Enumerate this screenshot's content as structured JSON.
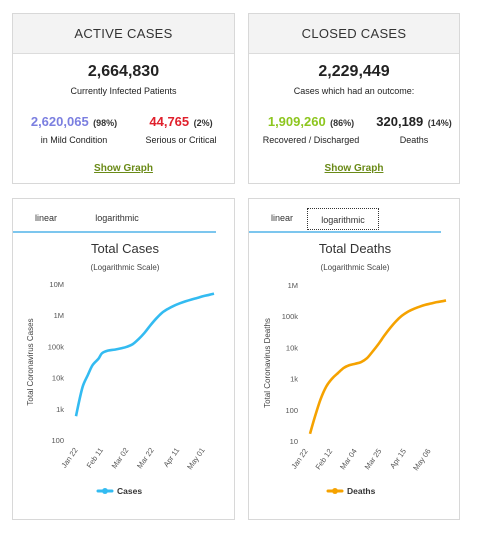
{
  "active": {
    "title": "ACTIVE CASES",
    "total": "2,664,830",
    "total_label": "Currently Infected Patients",
    "mild_value": "2,620,065",
    "mild_pct": "(98%)",
    "mild_label": "in Mild Condition",
    "serious_value": "44,765",
    "serious_pct": "(2%)",
    "serious_label": "Serious or Critical",
    "link": "Show Graph"
  },
  "closed": {
    "title": "CLOSED CASES",
    "total": "2,229,449",
    "total_label": "Cases which had an outcome:",
    "recovered_value": "1,909,260",
    "recovered_pct": "(86%)",
    "recovered_label": "Recovered / Discharged",
    "deaths_value": "320,189",
    "deaths_pct": "(14%)",
    "deaths_label": "Deaths",
    "link": "Show Graph"
  },
  "colors": {
    "mild": "#7b7fe0",
    "serious": "#e0202c",
    "recovered": "#8dc61f",
    "cases_line": "#33bbf1",
    "deaths_line": "#f5a200"
  },
  "chart_data": [
    {
      "type": "line",
      "title": "Total Cases",
      "subtitle": "(Logarithmic Scale)",
      "ylabel": "Total Coronavirus Cases",
      "y_scale": "log",
      "ylim": [
        100,
        10000000
      ],
      "y_ticks": [
        "100",
        "1k",
        "10k",
        "100k",
        "1M",
        "10M"
      ],
      "x_ticks": [
        "Jan 22",
        "Feb 11",
        "Mar 02",
        "Mar 22",
        "Apr 11",
        "May 01"
      ],
      "tabs": [
        "linear",
        "logarithmic"
      ],
      "active_tab": "logarithmic",
      "legend_position": "bottom",
      "series": [
        {
          "name": "Cases",
          "x": [
            "2020-01-22",
            "2020-01-25",
            "2020-01-28",
            "2020-02-01",
            "2020-02-05",
            "2020-02-10",
            "2020-02-13",
            "2020-02-18",
            "2020-02-24",
            "2020-03-01",
            "2020-03-05",
            "2020-03-10",
            "2020-03-15",
            "2020-03-20",
            "2020-03-25",
            "2020-03-30",
            "2020-04-04",
            "2020-04-09",
            "2020-04-14",
            "2020-04-19",
            "2020-04-24",
            "2020-04-29",
            "2020-05-04",
            "2020-05-09",
            "2020-05-14",
            "2020-05-18"
          ],
          "y": [
            580,
            2000,
            5600,
            12000,
            25000,
            40000,
            60000,
            73000,
            79000,
            88000,
            97000,
            117000,
            170000,
            270000,
            470000,
            780000,
            1200000,
            1600000,
            2000000,
            2400000,
            2800000,
            3200000,
            3600000,
            4100000,
            4500000,
            4900000
          ]
        }
      ]
    },
    {
      "type": "line",
      "title": "Total Deaths",
      "subtitle": "(Logarithmic Scale)",
      "ylabel": "Total Coronavirus Deaths",
      "y_scale": "log",
      "ylim": [
        10,
        1000000
      ],
      "y_ticks": [
        "10",
        "100",
        "1k",
        "10k",
        "100k",
        "1M"
      ],
      "x_ticks": [
        "Jan 22",
        "Feb 12",
        "Mar 04",
        "Mar 25",
        "Apr 15",
        "May 06"
      ],
      "tabs": [
        "linear",
        "logarithmic"
      ],
      "active_tab": "logarithmic",
      "legend_position": "bottom",
      "series": [
        {
          "name": "Deaths",
          "x": [
            "2020-01-22",
            "2020-01-26",
            "2020-01-31",
            "2020-02-05",
            "2020-02-10",
            "2020-02-15",
            "2020-02-20",
            "2020-02-25",
            "2020-03-01",
            "2020-03-06",
            "2020-03-11",
            "2020-03-16",
            "2020-03-21",
            "2020-03-26",
            "2020-03-31",
            "2020-04-05",
            "2020-04-10",
            "2020-04-15",
            "2020-04-20",
            "2020-04-25",
            "2020-04-30",
            "2020-05-05",
            "2020-05-10",
            "2020-05-15",
            "2020-05-18"
          ],
          "y": [
            17,
            56,
            213,
            560,
            1000,
            1500,
            2200,
            2700,
            3000,
            3400,
            4500,
            7500,
            13000,
            24000,
            42000,
            69000,
            103000,
            138000,
            170000,
            200000,
            230000,
            255000,
            282000,
            303000,
            320000
          ]
        }
      ]
    }
  ]
}
